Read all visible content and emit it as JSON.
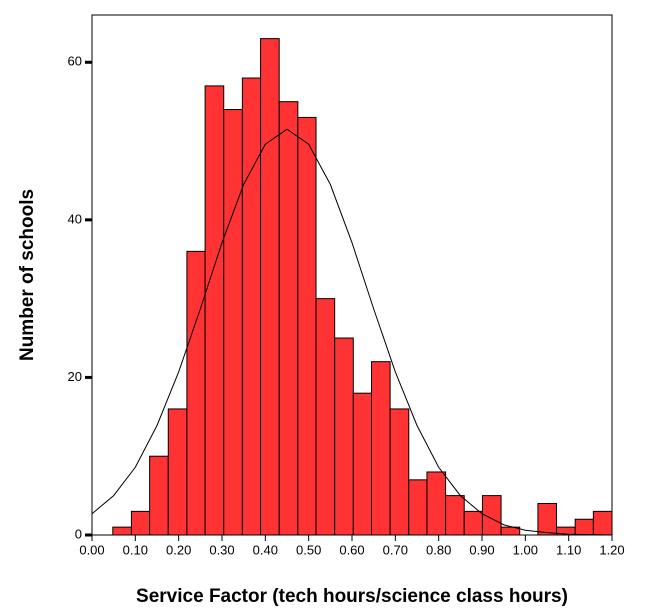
{
  "chart_data": {
    "type": "histogram",
    "xlabel": "Service Factor (tech hours/science class hours)",
    "ylabel": "Number of schools",
    "bins": [
      0.048,
      0.091,
      0.133,
      0.176,
      0.219,
      0.261,
      0.304,
      0.347,
      0.389,
      0.432,
      0.475,
      0.517,
      0.56,
      0.603,
      0.645,
      0.688,
      0.731,
      0.773,
      0.816,
      0.859,
      0.901,
      0.944,
      0.987,
      1.029,
      1.072,
      1.115,
      1.157,
      1.2
    ],
    "values": [
      1,
      3,
      10,
      16,
      36,
      57,
      54,
      58,
      63,
      55,
      53,
      30,
      25,
      18,
      22,
      16,
      7,
      8,
      5,
      3,
      5,
      1,
      0,
      4,
      1,
      2,
      3
    ],
    "color": "#ff3333",
    "curve": {
      "x": [
        0,
        0.05,
        0.1,
        0.15,
        0.2,
        0.25,
        0.3,
        0.35,
        0.4,
        0.45,
        0.5,
        0.55,
        0.6,
        0.65,
        0.7,
        0.75,
        0.8,
        0.85,
        0.9,
        0.95,
        1.0,
        1.05,
        1.1,
        1.15,
        1.2
      ],
      "values": [
        2.7,
        5.0,
        8.6,
        13.9,
        20.7,
        28.7,
        37.1,
        44.5,
        49.6,
        51.5,
        49.6,
        44.5,
        37.1,
        28.7,
        20.7,
        13.9,
        8.6,
        5.0,
        2.7,
        1.3,
        0.6,
        0.3,
        0.1,
        0.04,
        0.0
      ]
    },
    "xlim": [
      0,
      1.2
    ],
    "ylim": [
      0,
      66
    ],
    "xticks": [
      {
        "value": 0,
        "label": "0.00"
      },
      {
        "value": 0.1,
        "label": "0.10"
      },
      {
        "value": 0.2,
        "label": "0.20"
      },
      {
        "value": 0.3,
        "label": "0.30"
      },
      {
        "value": 0.4,
        "label": "0.40"
      },
      {
        "value": 0.5,
        "label": "0.50"
      },
      {
        "value": 0.6,
        "label": "0.60"
      },
      {
        "value": 0.7,
        "label": "0.70"
      },
      {
        "value": 0.8,
        "label": "0.80"
      },
      {
        "value": 0.9,
        "label": "0.90"
      },
      {
        "value": 1.0,
        "label": "1.00"
      },
      {
        "value": 1.1,
        "label": "1.10"
      },
      {
        "value": 1.2,
        "label": "1.20"
      }
    ],
    "yticks": [
      0,
      20,
      40,
      60
    ]
  }
}
